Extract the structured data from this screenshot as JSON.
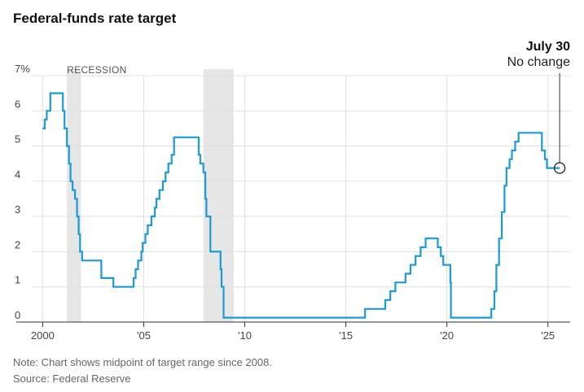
{
  "title": "Federal-funds rate target",
  "note": "Note: Chart shows midpoint of target range since 2008.",
  "source": "Source: Federal Reserve",
  "colors": {
    "line": "#1a9bd7",
    "recession": "#e6e6e6",
    "grid": "#e0e0e0",
    "axis": "#333333"
  },
  "chart_data": {
    "type": "line",
    "title": "Federal-funds rate target",
    "xlabel": "",
    "ylabel": "",
    "xlim": [
      1999.5,
      2026.1
    ],
    "ylim": [
      0,
      7
    ],
    "grid": true,
    "y_ticks": [
      {
        "value": 0,
        "label": "0"
      },
      {
        "value": 1,
        "label": "1"
      },
      {
        "value": 2,
        "label": "2"
      },
      {
        "value": 3,
        "label": "3"
      },
      {
        "value": 4,
        "label": "4"
      },
      {
        "value": 5,
        "label": "5"
      },
      {
        "value": 6,
        "label": "6"
      },
      {
        "value": 7,
        "label": "7%"
      }
    ],
    "x_ticks": [
      {
        "value": 2000,
        "label": "2000"
      },
      {
        "value": 2005,
        "label": "'05"
      },
      {
        "value": 2010,
        "label": "'10"
      },
      {
        "value": 2015,
        "label": "'15"
      },
      {
        "value": 2020,
        "label": "'20"
      },
      {
        "value": 2025,
        "label": "'25"
      }
    ],
    "recessions": [
      {
        "start": 2001.2,
        "end": 2001.9,
        "label": "RECESSION"
      },
      {
        "start": 2007.95,
        "end": 2009.45,
        "label": ""
      }
    ],
    "series": [
      {
        "values": [
          [
            2000.0,
            5.5
          ],
          [
            2000.1,
            5.75
          ],
          [
            2000.2,
            6.0
          ],
          [
            2000.38,
            6.5
          ],
          [
            2001.0,
            6.0
          ],
          [
            2001.08,
            5.5
          ],
          [
            2001.2,
            5.0
          ],
          [
            2001.3,
            4.5
          ],
          [
            2001.38,
            4.0
          ],
          [
            2001.48,
            3.75
          ],
          [
            2001.6,
            3.5
          ],
          [
            2001.7,
            3.0
          ],
          [
            2001.78,
            2.5
          ],
          [
            2001.85,
            2.0
          ],
          [
            2001.95,
            1.75
          ],
          [
            2002.9,
            1.25
          ],
          [
            2003.5,
            1.0
          ],
          [
            2004.5,
            1.25
          ],
          [
            2004.6,
            1.5
          ],
          [
            2004.72,
            1.75
          ],
          [
            2004.88,
            2.0
          ],
          [
            2004.95,
            2.25
          ],
          [
            2005.08,
            2.5
          ],
          [
            2005.2,
            2.75
          ],
          [
            2005.38,
            3.0
          ],
          [
            2005.55,
            3.25
          ],
          [
            2005.63,
            3.5
          ],
          [
            2005.78,
            3.75
          ],
          [
            2005.95,
            4.0
          ],
          [
            2006.08,
            4.25
          ],
          [
            2006.22,
            4.5
          ],
          [
            2006.38,
            4.75
          ],
          [
            2006.5,
            5.25
          ],
          [
            2007.72,
            4.75
          ],
          [
            2007.8,
            4.5
          ],
          [
            2007.95,
            4.25
          ],
          [
            2008.05,
            3.5
          ],
          [
            2008.1,
            3.0
          ],
          [
            2008.3,
            2.0
          ],
          [
            2008.8,
            1.5
          ],
          [
            2008.85,
            1.0
          ],
          [
            2008.95,
            0.125
          ],
          [
            2015.95,
            0.375
          ],
          [
            2016.95,
            0.625
          ],
          [
            2017.2,
            0.875
          ],
          [
            2017.45,
            1.125
          ],
          [
            2017.95,
            1.375
          ],
          [
            2018.2,
            1.625
          ],
          [
            2018.45,
            1.875
          ],
          [
            2018.7,
            2.125
          ],
          [
            2018.95,
            2.375
          ],
          [
            2019.55,
            2.125
          ],
          [
            2019.7,
            1.875
          ],
          [
            2019.82,
            1.625
          ],
          [
            2020.17,
            1.125
          ],
          [
            2020.2,
            0.125
          ],
          [
            2022.2,
            0.375
          ],
          [
            2022.35,
            0.875
          ],
          [
            2022.45,
            1.625
          ],
          [
            2022.58,
            2.375
          ],
          [
            2022.72,
            3.125
          ],
          [
            2022.85,
            3.875
          ],
          [
            2022.95,
            4.375
          ],
          [
            2023.1,
            4.625
          ],
          [
            2023.22,
            4.875
          ],
          [
            2023.38,
            5.125
          ],
          [
            2023.55,
            5.375
          ],
          [
            2024.7,
            4.875
          ],
          [
            2024.85,
            4.625
          ],
          [
            2024.95,
            4.375
          ],
          [
            2025.58,
            4.375
          ]
        ]
      }
    ],
    "annotations": [
      {
        "x": 2025.58,
        "y": 4.375,
        "title": "July 30",
        "text": "No change"
      }
    ]
  }
}
